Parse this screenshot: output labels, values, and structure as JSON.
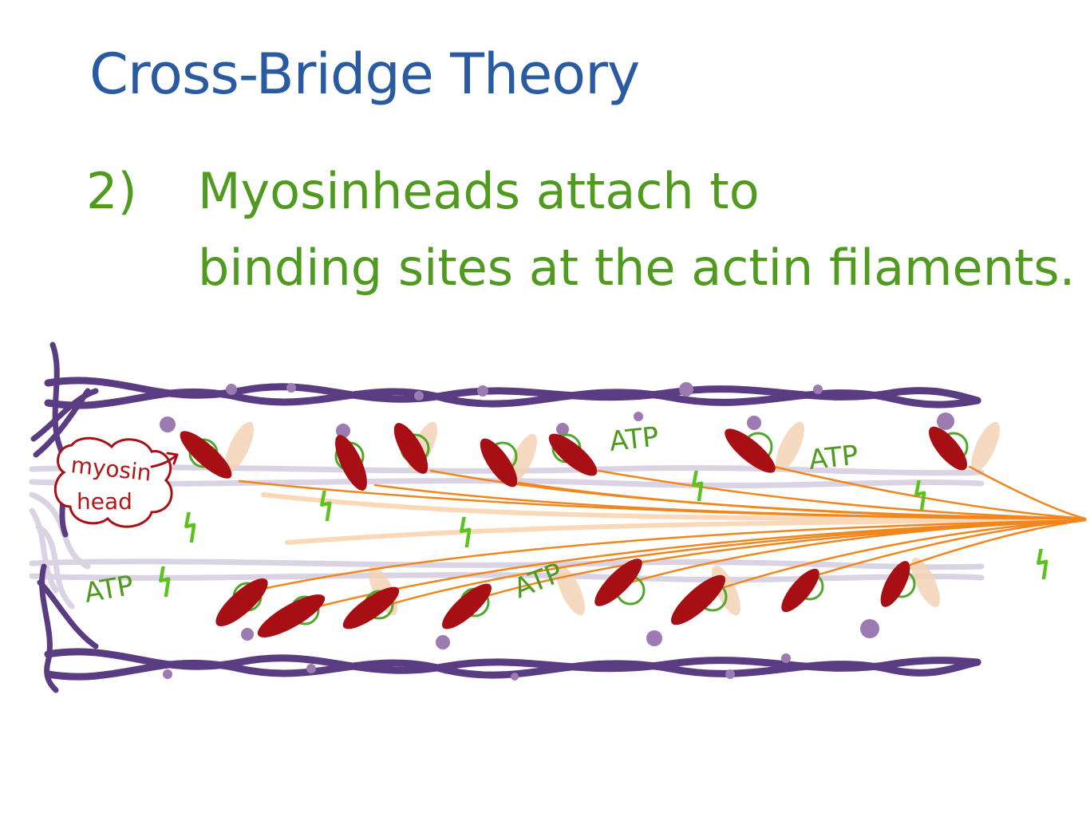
{
  "title": "Cross-Bridge Theory",
  "step": {
    "number": "2)",
    "line1": "Myosinheads attach to",
    "line2": "binding sites at the actin filaments."
  },
  "labels": {
    "myosin_head_line1": "myosin",
    "myosin_head_line2": "head",
    "atp": "ATP"
  },
  "colors": {
    "title": "#2a5aa0",
    "text": "#4f9a1f",
    "actin": "#5a3c82",
    "actin_faint": "#cfc6da",
    "myosin_head": "#a80f14",
    "myosin_tail": "#f0861e",
    "binding_site_ring": "#4fa82a",
    "energy": "#5cc21e"
  },
  "icons": [
    "energy-bolt-icon"
  ]
}
